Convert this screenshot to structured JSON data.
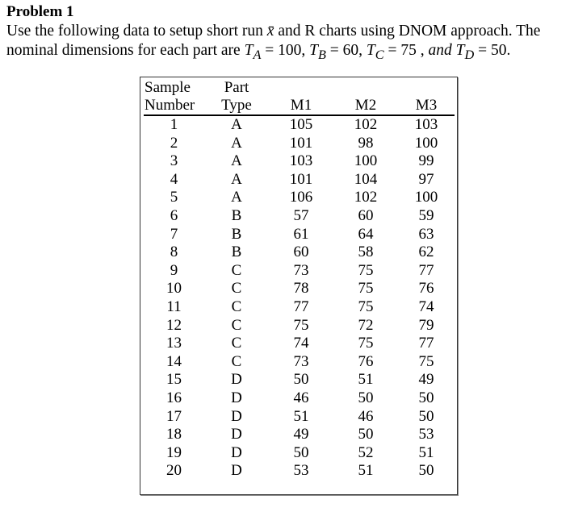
{
  "title": "Problem 1",
  "paragraph_line1": "Use the following data to setup short run x̄ and R charts using DNOM approach. The",
  "paragraph_line2": "nominal dimensions for each part are T_A = 100, T_B = 60, T_C = 75, and T_D = 50.",
  "table": {
    "headers_top": [
      "Sample",
      "Part",
      "",
      "",
      ""
    ],
    "headers": [
      "Number",
      "Type",
      "M1",
      "M2",
      "M3"
    ],
    "rows": [
      [
        "1",
        "A",
        "105",
        "102",
        "103"
      ],
      [
        "2",
        "A",
        "101",
        "98",
        "100"
      ],
      [
        "3",
        "A",
        "103",
        "100",
        "99"
      ],
      [
        "4",
        "A",
        "101",
        "104",
        "97"
      ],
      [
        "5",
        "A",
        "106",
        "102",
        "100"
      ],
      [
        "6",
        "B",
        "57",
        "60",
        "59"
      ],
      [
        "7",
        "B",
        "61",
        "64",
        "63"
      ],
      [
        "8",
        "B",
        "60",
        "58",
        "62"
      ],
      [
        "9",
        "C",
        "73",
        "75",
        "77"
      ],
      [
        "10",
        "C",
        "78",
        "75",
        "76"
      ],
      [
        "11",
        "C",
        "77",
        "75",
        "74"
      ],
      [
        "12",
        "C",
        "75",
        "72",
        "79"
      ],
      [
        "13",
        "C",
        "74",
        "75",
        "77"
      ],
      [
        "14",
        "C",
        "73",
        "76",
        "75"
      ],
      [
        "15",
        "D",
        "50",
        "51",
        "49"
      ],
      [
        "16",
        "D",
        "46",
        "50",
        "50"
      ],
      [
        "17",
        "D",
        "51",
        "46",
        "50"
      ],
      [
        "18",
        "D",
        "49",
        "50",
        "53"
      ],
      [
        "19",
        "D",
        "50",
        "52",
        "51"
      ],
      [
        "20",
        "D",
        "53",
        "51",
        "50"
      ]
    ]
  }
}
